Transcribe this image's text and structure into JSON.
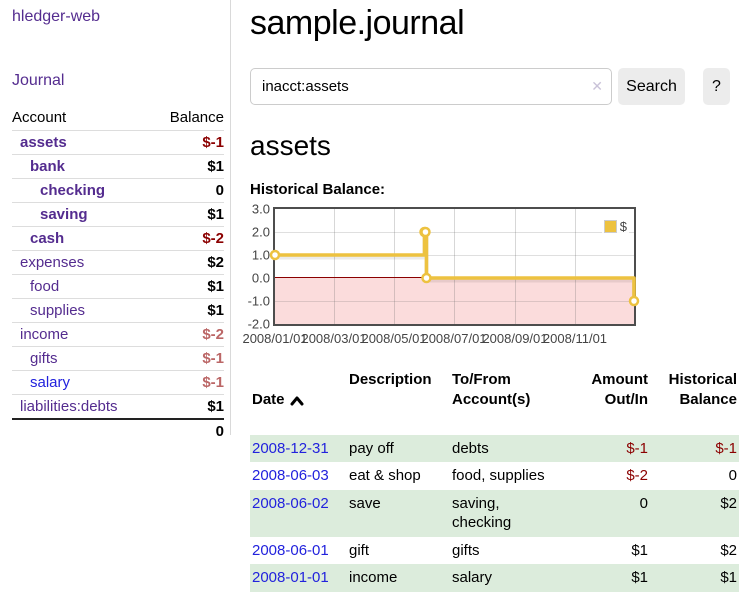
{
  "brand": {
    "title": "hledger-web"
  },
  "nav": {
    "journal_label": "Journal"
  },
  "sidebar": {
    "account_header": "Account",
    "balance_header": "Balance",
    "accounts": [
      {
        "name": "assets",
        "balance": "$-1"
      },
      {
        "name": "bank",
        "balance": "$1"
      },
      {
        "name": "checking",
        "balance": "0"
      },
      {
        "name": "saving",
        "balance": "$1"
      },
      {
        "name": "cash",
        "balance": "$-2"
      },
      {
        "name": "expenses",
        "balance": "$2"
      },
      {
        "name": "food",
        "balance": "$1"
      },
      {
        "name": "supplies",
        "balance": "$1"
      },
      {
        "name": "income",
        "balance": "$-2"
      },
      {
        "name": "gifts",
        "balance": "$-1"
      },
      {
        "name": "salary",
        "balance": "$-1"
      },
      {
        "name": "liabilities:debts",
        "balance": "$1"
      }
    ],
    "total_balance": "0"
  },
  "main": {
    "journal_title": "sample.journal",
    "account_title": "assets",
    "section_label": "Historical Balance:"
  },
  "search": {
    "value": "inacct:assets",
    "clear_icon": "✕",
    "submit_label": "Search",
    "help_label": "?"
  },
  "chart_data": {
    "type": "line",
    "step": true,
    "title": "Historical Balance",
    "series": [
      {
        "name": "$",
        "color": "#edc240",
        "points": [
          {
            "date": "2008-01-01",
            "value": 1
          },
          {
            "date": "2008-06-01",
            "value": 2
          },
          {
            "date": "2008-06-02",
            "value": 2
          },
          {
            "date": "2008-06-03",
            "value": 0
          },
          {
            "date": "2008-12-31",
            "value": -1
          }
        ]
      }
    ],
    "x_range": [
      "2008-01-01",
      "2008-12-31"
    ],
    "ylim": [
      -2,
      3
    ],
    "x_ticks": [
      "2008/01/01",
      "2008/03/01",
      "2008/05/01",
      "2008/07/01",
      "2008/09/01",
      "2008/11/01"
    ],
    "y_ticks": [
      "3.0",
      "2.0",
      "1.0",
      "0.0",
      "-1.0",
      "-2.0"
    ],
    "legend": {
      "label": "$",
      "position": "top-right",
      "swatch_color": "#edc240"
    },
    "grid": true,
    "negative_region_color": "#fbdcdc",
    "zero_line_color": "#8b0000",
    "axis_label_color": "#444444"
  },
  "register": {
    "headers": {
      "date": "Date",
      "description": "Description",
      "accounts": "To/From\nAccount(s)",
      "amount": "Amount\nOut/In",
      "balance": "Historical\nBalance"
    },
    "sort_icon": "chevron-up",
    "rows": [
      {
        "date": "2008-12-31",
        "description": "pay off",
        "accounts": "debts",
        "amount": "$-1",
        "balance": "$-1"
      },
      {
        "date": "2008-06-03",
        "description": "eat & shop",
        "accounts": "food, supplies",
        "amount": "$-2",
        "balance": "0"
      },
      {
        "date": "2008-06-02",
        "description": "save",
        "accounts": "saving,\nchecking",
        "amount": "0",
        "balance": "$2"
      },
      {
        "date": "2008-06-01",
        "description": "gift",
        "accounts": "gifts",
        "amount": "$1",
        "balance": "$2"
      },
      {
        "date": "2008-01-01",
        "description": "income",
        "accounts": "salary",
        "amount": "$1",
        "balance": "$1"
      }
    ]
  },
  "colors": {
    "accent_purple": "#542c8f",
    "link_blue": "#2222dd",
    "negative_strong": "#8b0000",
    "negative_soft": "#bb6666",
    "row_stripe_green": "#dcecdc"
  }
}
